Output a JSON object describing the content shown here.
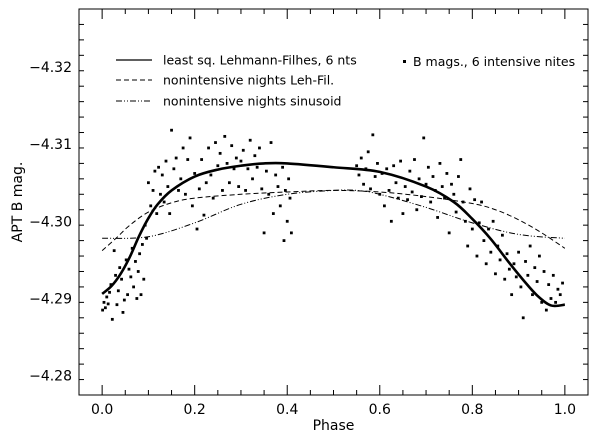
{
  "chart_data": {
    "type": "scatter",
    "xlabel": "Phase",
    "ylabel": "APT  B mag.",
    "xlim": [
      -0.05,
      1.05
    ],
    "ylim": [
      -4.2775,
      -4.3275
    ],
    "y_inverted": true,
    "xticks": [
      {
        "value": 0.0,
        "label": "0.0"
      },
      {
        "value": 0.2,
        "label": "0.2"
      },
      {
        "value": 0.4,
        "label": "0.4"
      },
      {
        "value": 0.6,
        "label": "0.6"
      },
      {
        "value": 0.8,
        "label": "0.8"
      },
      {
        "value": 1.0,
        "label": "1.0"
      }
    ],
    "yticks": [
      {
        "value": -4.28,
        "label": "−4.28"
      },
      {
        "value": -4.29,
        "label": "−4.29"
      },
      {
        "value": -4.3,
        "label": "−4.30"
      },
      {
        "value": -4.31,
        "label": "−4.31"
      },
      {
        "value": -4.32,
        "label": "−4.32"
      }
    ],
    "legend": {
      "placement": "top",
      "entries": [
        {
          "name": "least sq. Lehmann-Filhes, 6 nts",
          "style": "solid"
        },
        {
          "name": "nonintensive nights Leh-Fil.",
          "style": "dashed"
        },
        {
          "name": "nonintensive nights sinusoid",
          "style": "dash-dot-dot"
        },
        {
          "name": "B mags., 6 intensive nites",
          "style": "points"
        }
      ]
    },
    "series": [
      {
        "name": "least sq. Lehmann-Filhes, 6 nts",
        "style": "solid",
        "x": [
          0.0,
          0.02,
          0.04,
          0.06,
          0.08,
          0.1,
          0.12,
          0.15,
          0.2,
          0.25,
          0.3,
          0.35,
          0.4,
          0.5,
          0.6,
          0.7,
          0.76,
          0.8,
          0.84,
          0.88,
          0.91,
          0.94,
          0.97,
          1.0
        ],
        "y": [
          -4.2906,
          -4.2916,
          -4.2932,
          -4.2954,
          -4.2981,
          -4.3004,
          -4.3022,
          -4.304,
          -4.3058,
          -4.3067,
          -4.3072,
          -4.3075,
          -4.3075,
          -4.307,
          -4.3064,
          -4.3045,
          -4.3025,
          -4.3003,
          -4.2977,
          -4.2946,
          -4.2924,
          -4.2904,
          -4.2891,
          -4.2892
        ]
      },
      {
        "name": "nonintensive nights Leh-Fil.",
        "style": "dashed",
        "x": [
          0.0,
          0.03,
          0.06,
          0.1,
          0.15,
          0.2,
          0.3,
          0.4,
          0.5,
          0.6,
          0.7,
          0.8,
          0.85,
          0.9,
          0.95,
          1.0
        ],
        "y": [
          -4.2962,
          -4.2978,
          -4.2995,
          -4.3012,
          -4.3024,
          -4.303,
          -4.3035,
          -4.3038,
          -4.304,
          -4.3038,
          -4.3032,
          -4.3023,
          -4.3015,
          -4.3002,
          -4.2985,
          -4.2965
        ]
      },
      {
        "name": "nonintensive nights sinusoid",
        "style": "dash-dot-dot",
        "x": [
          0.0,
          0.1,
          0.2,
          0.3,
          0.4,
          0.5,
          0.55,
          0.6,
          0.7,
          0.8,
          0.9,
          1.0
        ],
        "y": [
          -4.2978,
          -4.298,
          -4.2998,
          -4.3022,
          -4.3035,
          -4.304,
          -4.304,
          -4.3035,
          -4.3018,
          -4.2998,
          -4.2983,
          -4.2978
        ]
      }
    ],
    "points": [
      [
        0.001,
        -4.2885
      ],
      [
        0.004,
        -4.2895
      ],
      [
        0.007,
        -4.2888
      ],
      [
        0.01,
        -4.2902
      ],
      [
        0.013,
        -4.2893
      ],
      [
        0.016,
        -4.2908
      ],
      [
        0.019,
        -4.2918
      ],
      [
        0.022,
        -4.2873
      ],
      [
        0.026,
        -4.2962
      ],
      [
        0.029,
        -4.293
      ],
      [
        0.032,
        -4.2892
      ],
      [
        0.035,
        -4.291
      ],
      [
        0.038,
        -4.294
      ],
      [
        0.042,
        -4.2925
      ],
      [
        0.045,
        -4.2882
      ],
      [
        0.048,
        -4.2898
      ],
      [
        0.052,
        -4.295
      ],
      [
        0.055,
        -4.2905
      ],
      [
        0.058,
        -4.2938
      ],
      [
        0.062,
        -4.2928
      ],
      [
        0.065,
        -4.2965
      ],
      [
        0.068,
        -4.2915
      ],
      [
        0.072,
        -4.2948
      ],
      [
        0.075,
        -4.29
      ],
      [
        0.078,
        -4.2935
      ],
      [
        0.081,
        -4.2958
      ],
      [
        0.084,
        -4.2905
      ],
      [
        0.087,
        -4.297
      ],
      [
        0.09,
        -4.2925
      ],
      [
        0.093,
        -4.2995
      ],
      [
        0.096,
        -4.2978
      ],
      [
        0.1,
        -4.305
      ],
      [
        0.105,
        -4.302
      ],
      [
        0.11,
        -4.304
      ],
      [
        0.114,
        -4.3065
      ],
      [
        0.118,
        -4.301
      ],
      [
        0.122,
        -4.307
      ],
      [
        0.126,
        -4.3035
      ],
      [
        0.13,
        -4.306
      ],
      [
        0.134,
        -4.3025
      ],
      [
        0.138,
        -4.3078
      ],
      [
        0.142,
        -4.3045
      ],
      [
        0.146,
        -4.301
      ],
      [
        0.15,
        -4.3118
      ],
      [
        0.155,
        -4.3068
      ],
      [
        0.16,
        -4.3082
      ],
      [
        0.165,
        -4.304
      ],
      [
        0.17,
        -4.3055
      ],
      [
        0.175,
        -4.3095
      ],
      [
        0.18,
        -4.3035
      ],
      [
        0.185,
        -4.308
      ],
      [
        0.19,
        -4.3108
      ],
      [
        0.195,
        -4.302
      ],
      [
        0.2,
        -4.3062
      ],
      [
        0.205,
        -4.299
      ],
      [
        0.21,
        -4.3042
      ],
      [
        0.215,
        -4.308
      ],
      [
        0.22,
        -4.3008
      ],
      [
        0.225,
        -4.305
      ],
      [
        0.23,
        -4.3095
      ],
      [
        0.235,
        -4.306
      ],
      [
        0.24,
        -4.303
      ],
      [
        0.245,
        -4.3102
      ],
      [
        0.25,
        -4.3072
      ],
      [
        0.255,
        -4.3088
      ],
      [
        0.26,
        -4.304
      ],
      [
        0.265,
        -4.311
      ],
      [
        0.27,
        -4.3075
      ],
      [
        0.275,
        -4.305
      ],
      [
        0.28,
        -4.3098
      ],
      [
        0.285,
        -4.3068
      ],
      [
        0.29,
        -4.3082
      ],
      [
        0.295,
        -4.3045
      ],
      [
        0.3,
        -4.3078
      ],
      [
        0.305,
        -4.3092
      ],
      [
        0.31,
        -4.304
      ],
      [
        0.315,
        -4.3068
      ],
      [
        0.32,
        -4.3105
      ],
      [
        0.325,
        -4.3055
      ],
      [
        0.33,
        -4.3085
      ],
      [
        0.335,
        -4.307
      ],
      [
        0.34,
        -4.3095
      ],
      [
        0.345,
        -4.3042
      ],
      [
        0.35,
        -4.2985
      ],
      [
        0.355,
        -4.3065
      ],
      [
        0.36,
        -4.3035
      ],
      [
        0.365,
        -4.3102
      ],
      [
        0.37,
        -4.301
      ],
      [
        0.375,
        -4.306
      ],
      [
        0.38,
        -4.3045
      ],
      [
        0.385,
        -4.302
      ],
      [
        0.39,
        -4.307
      ],
      [
        0.393,
        -4.2975
      ],
      [
        0.396,
        -4.304
      ],
      [
        0.4,
        -4.3
      ],
      [
        0.403,
        -4.3055
      ],
      [
        0.406,
        -4.303
      ],
      [
        0.409,
        -4.2985
      ],
      [
        0.55,
        -4.3072
      ],
      [
        0.555,
        -4.306
      ],
      [
        0.56,
        -4.3082
      ],
      [
        0.565,
        -4.3048
      ],
      [
        0.57,
        -4.3068
      ],
      [
        0.575,
        -4.309
      ],
      [
        0.58,
        -4.3042
      ],
      [
        0.585,
        -4.3112
      ],
      [
        0.59,
        -4.3058
      ],
      [
        0.595,
        -4.3075
      ],
      [
        0.6,
        -4.3035
      ],
      [
        0.605,
        -4.3062
      ],
      [
        0.61,
        -4.302
      ],
      [
        0.615,
        -4.3068
      ],
      [
        0.62,
        -4.304
      ],
      [
        0.625,
        -4.3
      ],
      [
        0.63,
        -4.3072
      ],
      [
        0.635,
        -4.305
      ],
      [
        0.64,
        -4.303
      ],
      [
        0.645,
        -4.3078
      ],
      [
        0.65,
        -4.301
      ],
      [
        0.655,
        -4.3045
      ],
      [
        0.66,
        -4.3028
      ],
      [
        0.665,
        -4.3065
      ],
      [
        0.67,
        -4.3038
      ],
      [
        0.675,
        -4.308
      ],
      [
        0.68,
        -4.3015
      ],
      [
        0.685,
        -4.3055
      ],
      [
        0.69,
        -4.3032
      ],
      [
        0.695,
        -4.3108
      ],
      [
        0.7,
        -4.3048
      ],
      [
        0.705,
        -4.307
      ],
      [
        0.71,
        -4.3025
      ],
      [
        0.715,
        -4.3058
      ],
      [
        0.72,
        -4.304
      ],
      [
        0.725,
        -4.3005
      ],
      [
        0.73,
        -4.3075
      ],
      [
        0.735,
        -4.3045
      ],
      [
        0.74,
        -4.303
      ],
      [
        0.745,
        -4.3062
      ],
      [
        0.75,
        -4.2985
      ],
      [
        0.755,
        -4.3048
      ],
      [
        0.76,
        -4.3035
      ],
      [
        0.765,
        -4.3012
      ],
      [
        0.77,
        -4.3058
      ],
      [
        0.775,
        -4.308
      ],
      [
        0.78,
        -4.3025
      ],
      [
        0.785,
        -4.3
      ],
      [
        0.79,
        -4.2968
      ],
      [
        0.795,
        -4.3042
      ],
      [
        0.8,
        -4.299
      ],
      [
        0.805,
        -4.3028
      ],
      [
        0.81,
        -4.2955
      ],
      [
        0.815,
        -4.2998
      ],
      [
        0.82,
        -4.3025
      ],
      [
        0.825,
        -4.2975
      ],
      [
        0.83,
        -4.2945
      ],
      [
        0.835,
        -4.299
      ],
      [
        0.84,
        -4.296
      ],
      [
        0.845,
        -4.3
      ],
      [
        0.85,
        -4.2932
      ],
      [
        0.855,
        -4.2968
      ],
      [
        0.86,
        -4.295
      ],
      [
        0.865,
        -4.2982
      ],
      [
        0.87,
        -4.2925
      ],
      [
        0.875,
        -4.2958
      ],
      [
        0.88,
        -4.2938
      ],
      [
        0.885,
        -4.2905
      ],
      [
        0.89,
        -4.2945
      ],
      [
        0.895,
        -4.2928
      ],
      [
        0.9,
        -4.296
      ],
      [
        0.905,
        -4.2915
      ],
      [
        0.91,
        -4.2875
      ],
      [
        0.915,
        -4.2948
      ],
      [
        0.92,
        -4.293
      ],
      [
        0.925,
        -4.2968
      ],
      [
        0.93,
        -4.2905
      ],
      [
        0.935,
        -4.294
      ],
      [
        0.94,
        -4.2922
      ],
      [
        0.945,
        -4.2955
      ],
      [
        0.95,
        -4.2895
      ],
      [
        0.955,
        -4.2935
      ],
      [
        0.96,
        -4.2885
      ],
      [
        0.965,
        -4.2918
      ],
      [
        0.97,
        -4.29
      ],
      [
        0.975,
        -4.293
      ],
      [
        0.98,
        -4.2895
      ],
      [
        0.985,
        -4.2912
      ],
      [
        0.99,
        -4.2905
      ],
      [
        0.995,
        -4.292
      ]
    ]
  }
}
